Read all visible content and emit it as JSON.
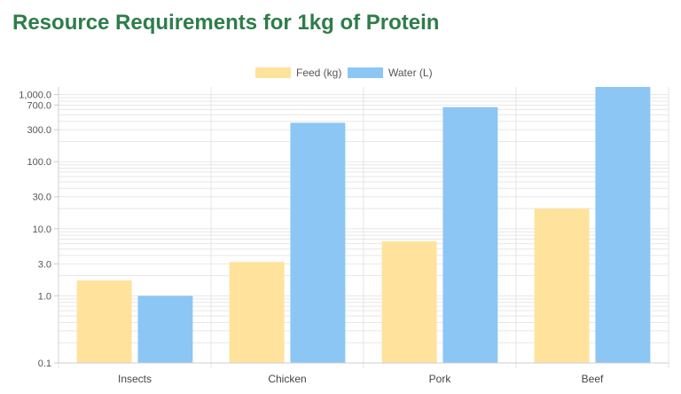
{
  "chart_data": {
    "type": "bar",
    "title": "Resource Requirements for 1kg of Protein",
    "categories": [
      "Insects",
      "Chicken",
      "Pork",
      "Beef"
    ],
    "series": [
      {
        "name": "Feed (kg)",
        "values": [
          1.7,
          3.2,
          6.5,
          20
        ],
        "color": "#ffe29c"
      },
      {
        "name": "Water (L)",
        "values": [
          1.0,
          380,
          650,
          1300
        ],
        "color": "#8cc6f4"
      }
    ],
    "yscale": "log",
    "ylim": [
      0.1,
      1300
    ],
    "yticks": [
      {
        "value": 1000,
        "label": "1,000.0"
      },
      {
        "value": 700,
        "label": "700.0"
      },
      {
        "value": 300,
        "label": "300.0"
      },
      {
        "value": 100,
        "label": "100.0"
      },
      {
        "value": 30,
        "label": "30.0"
      },
      {
        "value": 10,
        "label": "10.0"
      },
      {
        "value": 3,
        "label": "3.0"
      },
      {
        "value": 1,
        "label": "1.0"
      },
      {
        "value": 0.1,
        "label": "0.1"
      }
    ],
    "grid": true,
    "legend": "top-center"
  }
}
